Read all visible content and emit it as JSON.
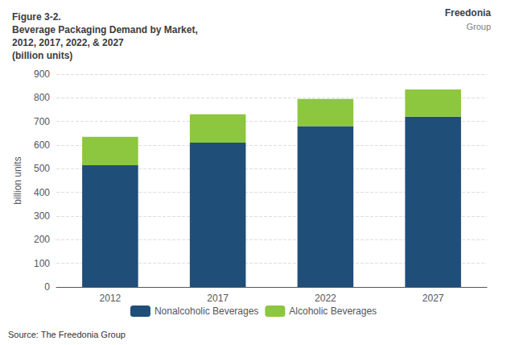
{
  "chart_data": {
    "type": "bar",
    "title": "Figure 3-2.\nBeverage Packaging Demand by Market,\n2012, 2017, 2022, & 2027\n(billion units)",
    "ylabel": "billion units",
    "categories": [
      "2012",
      "2017",
      "2022",
      "2027"
    ],
    "series": [
      {
        "name": "Nonalcoholic Beverages",
        "color": "#1f4e79",
        "values": [
          515,
          610,
          680,
          720
        ]
      },
      {
        "name": "Alcoholic Beverages",
        "color": "#8dc63f",
        "values": [
          120,
          120,
          115,
          115
        ]
      }
    ],
    "stacked": true,
    "ylim": [
      0,
      900
    ],
    "yticks": [
      0,
      100,
      200,
      300,
      400,
      500,
      600,
      700,
      800,
      900
    ],
    "grid": true,
    "legend": "bottom",
    "annotations": [
      "Freedonia",
      "Group",
      "Source: The Freedonia Group"
    ]
  }
}
